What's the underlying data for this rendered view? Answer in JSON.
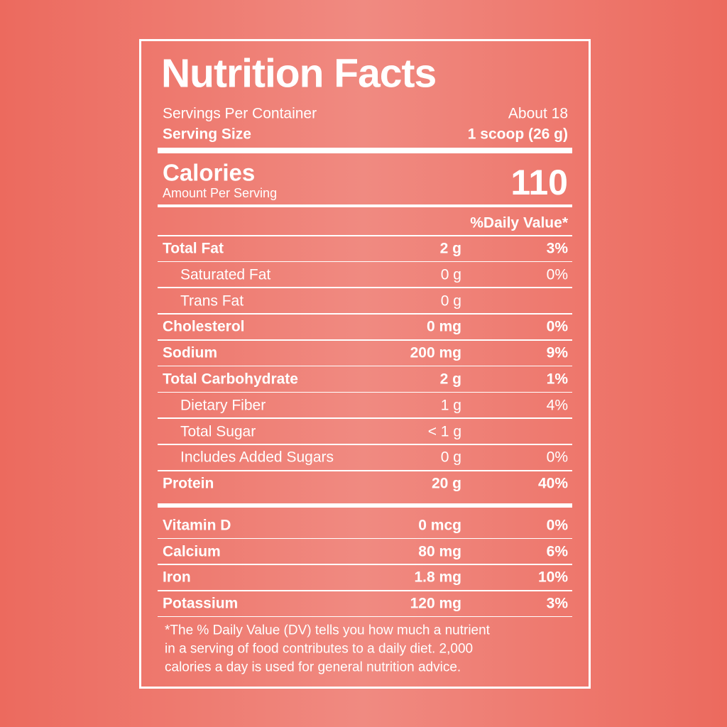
{
  "title": "Nutrition Facts",
  "servings": {
    "label": "Servings Per Container",
    "value": "About 18"
  },
  "serving_size": {
    "label": "Serving Size",
    "value": "1 scoop (26 g)"
  },
  "calories": {
    "label": "Calories",
    "sublabel": "Amount Per Serving",
    "value": "110"
  },
  "daily_value_header": "%Daily Value*",
  "nutrients": [
    {
      "name": "Total Fat",
      "amount": "2 g",
      "dv": "3%",
      "sub": [
        {
          "name": "Saturated Fat",
          "amount": "0 g",
          "dv": "0%"
        },
        {
          "name": "Trans Fat",
          "amount": "0 g"
        }
      ]
    },
    {
      "name": "Cholesterol",
      "amount": "0 mg",
      "dv": "0%"
    },
    {
      "name": "Sodium",
      "amount": "200 mg",
      "dv": "9%"
    },
    {
      "name": "Total Carbohydrate",
      "amount": "2 g",
      "dv": "1%",
      "sub": [
        {
          "name": "Dietary Fiber",
          "amount": "1 g",
          "dv": "4%"
        },
        {
          "name": "Total Sugar",
          "amount": "< 1 g"
        },
        {
          "name": "Includes Added Sugars",
          "amount": "0 g",
          "dv": "0%"
        }
      ]
    },
    {
      "name": "Protein",
      "amount": "20 g",
      "dv": "40%"
    }
  ],
  "vitamins": [
    {
      "name": "Vitamin D",
      "amount": "0 mcg",
      "dv": "0%"
    },
    {
      "name": "Calcium",
      "amount": "80 mg",
      "dv": "6%"
    },
    {
      "name": "Iron",
      "amount": "1.8 mg",
      "dv": "10%"
    },
    {
      "name": "Potassium",
      "amount": "120 mg",
      "dv": "3%"
    }
  ],
  "footnote": [
    "*The % Daily Value (DV) tells you how much a nutrient",
    "in a serving of food contributes to a daily diet. 2,000",
    "calories a day is used for general nutrition advice."
  ]
}
